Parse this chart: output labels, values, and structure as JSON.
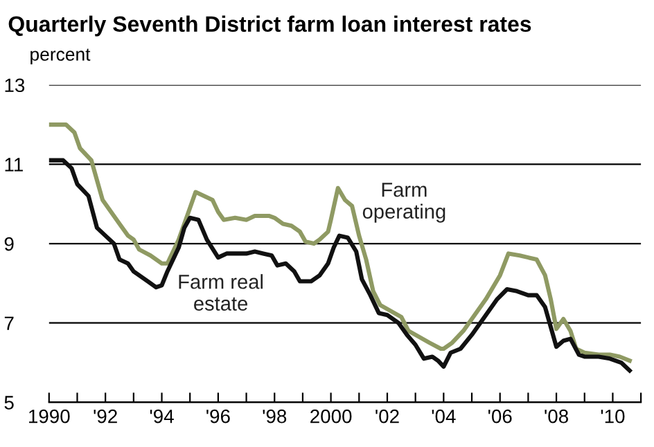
{
  "chart_data": {
    "type": "line",
    "title": "Quarterly Seventh District farm loan interest rates",
    "ylabel": "percent",
    "xlim": [
      1990,
      2011
    ],
    "ylim": [
      5,
      13
    ],
    "yticks": [
      5,
      7,
      9,
      11,
      13
    ],
    "xticks": [
      {
        "value": 1990,
        "label": "1990"
      },
      {
        "value": 1991,
        "label": null
      },
      {
        "value": 1992,
        "label": "'92"
      },
      {
        "value": 1993,
        "label": null
      },
      {
        "value": 1994,
        "label": "'94"
      },
      {
        "value": 1995,
        "label": null
      },
      {
        "value": 1996,
        "label": "'96"
      },
      {
        "value": 1997,
        "label": null
      },
      {
        "value": 1998,
        "label": "'98"
      },
      {
        "value": 1999,
        "label": null
      },
      {
        "value": 2000,
        "label": "2000"
      },
      {
        "value": 2001,
        "label": null
      },
      {
        "value": 2002,
        "label": "'02"
      },
      {
        "value": 2003,
        "label": null
      },
      {
        "value": 2004,
        "label": "'04"
      },
      {
        "value": 2005,
        "label": null
      },
      {
        "value": 2006,
        "label": "'06"
      },
      {
        "value": 2007,
        "label": null
      },
      {
        "value": 2008,
        "label": "'08"
      },
      {
        "value": 2009,
        "label": null
      },
      {
        "value": 2010,
        "label": "'10"
      },
      {
        "value": 2011,
        "label": null
      }
    ],
    "grid": "y",
    "series": [
      {
        "name": "Farm operating",
        "color": "#8f9a63",
        "x": [
          1990,
          1990.6,
          1990.9,
          1991.1,
          1991.5,
          1991.7,
          1991.9,
          1992.2,
          1992.5,
          1992.8,
          1993.0,
          1993.2,
          1993.6,
          1994.0,
          1994.2,
          1994.6,
          1995.0,
          1995.2,
          1995.5,
          1995.8,
          1996.0,
          1996.2,
          1996.6,
          1997.0,
          1997.3,
          1997.8,
          1998.0,
          1998.3,
          1998.6,
          1998.9,
          1999.1,
          1999.4,
          1999.6,
          1999.9,
          2000.0,
          2000.25,
          2000.5,
          2000.75,
          2001.0,
          2001.25,
          2001.5,
          2001.75,
          2002.0,
          2002.5,
          2002.75,
          2003.0,
          2003.5,
          2003.9,
          2004.0,
          2004.3,
          2004.7,
          2005.0,
          2005.5,
          2006.0,
          2006.3,
          2006.7,
          2007.0,
          2007.3,
          2007.6,
          2007.8,
          2008.0,
          2008.25,
          2008.5,
          2008.7,
          2009.0,
          2009.5,
          2009.9,
          2010.25,
          2010.6
        ],
        "values": [
          12.0,
          12.0,
          11.8,
          11.4,
          11.1,
          10.6,
          10.1,
          9.8,
          9.5,
          9.2,
          9.1,
          8.85,
          8.7,
          8.5,
          8.5,
          9.1,
          9.9,
          10.3,
          10.2,
          10.1,
          9.8,
          9.6,
          9.65,
          9.6,
          9.7,
          9.7,
          9.65,
          9.5,
          9.45,
          9.3,
          9.05,
          9.0,
          9.1,
          9.3,
          9.6,
          10.4,
          10.1,
          9.95,
          9.2,
          8.6,
          7.8,
          7.45,
          7.35,
          7.15,
          6.8,
          6.7,
          6.5,
          6.35,
          6.35,
          6.5,
          6.8,
          7.1,
          7.6,
          8.2,
          8.75,
          8.7,
          8.65,
          8.6,
          8.2,
          7.6,
          6.85,
          7.1,
          6.8,
          6.35,
          6.25,
          6.2,
          6.2,
          6.15,
          6.05
        ]
      },
      {
        "name": "Farm real estate",
        "color": "#111111",
        "x": [
          1990,
          1990.5,
          1990.8,
          1991.0,
          1991.4,
          1991.7,
          1992.0,
          1992.3,
          1992.5,
          1992.8,
          1993.0,
          1993.5,
          1993.8,
          1994.0,
          1994.2,
          1994.6,
          1994.8,
          1995.0,
          1995.3,
          1995.6,
          1996.0,
          1996.3,
          1996.7,
          1997.0,
          1997.3,
          1997.6,
          1997.9,
          1998.1,
          1998.4,
          1998.7,
          1998.9,
          1999.3,
          1999.6,
          1999.9,
          2000.1,
          2000.3,
          2000.6,
          2000.9,
          2001.1,
          2001.4,
          2001.7,
          2002.0,
          2002.4,
          2002.7,
          2003.0,
          2003.3,
          2003.6,
          2003.8,
          2004.0,
          2004.25,
          2004.6,
          2005.0,
          2005.5,
          2005.9,
          2006.25,
          2006.6,
          2007.0,
          2007.3,
          2007.6,
          2008.0,
          2008.25,
          2008.5,
          2008.8,
          2009.0,
          2009.5,
          2009.9,
          2010.3,
          2010.6
        ],
        "values": [
          11.1,
          11.1,
          10.9,
          10.5,
          10.2,
          9.4,
          9.2,
          9.0,
          8.6,
          8.5,
          8.3,
          8.05,
          7.9,
          7.95,
          8.3,
          8.9,
          9.4,
          9.65,
          9.6,
          9.1,
          8.65,
          8.75,
          8.75,
          8.75,
          8.8,
          8.75,
          8.7,
          8.45,
          8.5,
          8.3,
          8.05,
          8.05,
          8.2,
          8.5,
          8.9,
          9.2,
          9.15,
          8.8,
          8.1,
          7.7,
          7.25,
          7.2,
          7.0,
          6.7,
          6.45,
          6.1,
          6.15,
          6.05,
          5.9,
          6.25,
          6.35,
          6.7,
          7.2,
          7.6,
          7.85,
          7.8,
          7.7,
          7.7,
          7.4,
          6.4,
          6.55,
          6.6,
          6.2,
          6.15,
          6.15,
          6.1,
          6.0,
          5.8
        ]
      }
    ]
  }
}
